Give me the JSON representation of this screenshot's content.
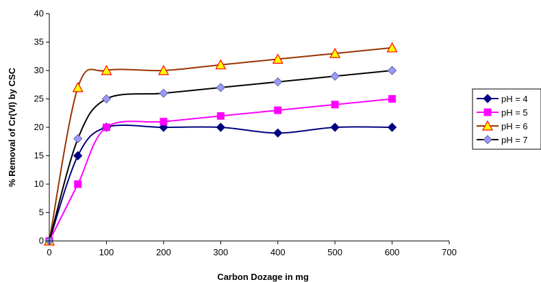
{
  "chart_data": {
    "type": "line",
    "title": "",
    "xlabel": "Carbon Dozage in mg",
    "ylabel": "% Removal of Cr(VI) by CSC",
    "xlim": [
      0,
      700
    ],
    "ylim": [
      0,
      40
    ],
    "x_ticks": [
      "0",
      "100",
      "200",
      "300",
      "400",
      "500",
      "600",
      "700"
    ],
    "y_ticks": [
      "0",
      "5",
      "10",
      "15",
      "20",
      "25",
      "30",
      "35",
      "40"
    ],
    "grid": false,
    "legend_position": "right",
    "x": [
      0,
      50,
      100,
      200,
      300,
      400,
      500,
      600
    ],
    "series": [
      {
        "name": "pH = 4",
        "color": "#000080",
        "marker": "diamond",
        "values": [
          0,
          15,
          20,
          20,
          20,
          19,
          20,
          20
        ]
      },
      {
        "name": "pH = 5",
        "color": "#ff00ff",
        "marker": "square",
        "values": [
          0,
          10,
          20,
          21,
          22,
          23,
          24,
          25
        ]
      },
      {
        "name": "pH = 6",
        "color": "#993300",
        "marker": "triangle",
        "marker_fill": "#ffff00",
        "marker_stroke": "#ff0000",
        "values": [
          0,
          27,
          30,
          30,
          31,
          32,
          33,
          34
        ]
      },
      {
        "name": "pH = 7",
        "color": "#000000",
        "marker": "diamond",
        "marker_fill": "#9999ff",
        "marker_stroke": "#666699",
        "values": [
          0,
          18,
          25,
          26,
          27,
          28,
          29,
          30
        ]
      }
    ]
  }
}
